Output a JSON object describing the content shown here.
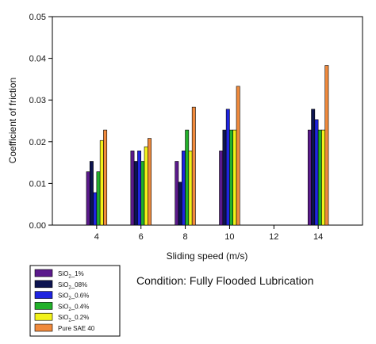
{
  "chart_data": {
    "type": "bar",
    "xlabel": "Sliding speed (m/s)",
    "ylabel": "Coefficient of friction",
    "annotation": "Condition: Fully Flooded Lubrication",
    "x_ticks": [
      4,
      6,
      8,
      10,
      12,
      14
    ],
    "xlim": [
      2,
      16
    ],
    "ylim": [
      0,
      0.05
    ],
    "y_ticks": [
      "0.00",
      "0.01",
      "0.02",
      "0.03",
      "0.04",
      "0.05"
    ],
    "grid": false,
    "legend_position": "bottom-left",
    "categories": [
      4,
      6,
      8,
      10,
      14
    ],
    "series": [
      {
        "name": "SiO2_1%",
        "label_main": "SiO",
        "label_sub": "2",
        "label_rest": "_1%",
        "color": "#5b1a8c",
        "values": [
          0.0128,
          0.0178,
          0.0153,
          0.0178,
          0.0228
        ]
      },
      {
        "name": "SiO2_08%",
        "label_main": "SiO",
        "label_sub": "2",
        "label_rest": "_08%",
        "color": "#0d1450",
        "values": [
          0.0153,
          0.0153,
          0.0103,
          0.0228,
          0.0278
        ]
      },
      {
        "name": "SiO2_0.6%",
        "label_main": "SiO",
        "label_sub": "2",
        "label_rest": "_0.6%",
        "color": "#1f24e0",
        "values": [
          0.0078,
          0.0178,
          0.0178,
          0.0278,
          0.0253
        ]
      },
      {
        "name": "SiO2_0.4%",
        "label_main": "SiO",
        "label_sub": "2",
        "label_rest": "_0.4%",
        "color": "#22b02a",
        "values": [
          0.0128,
          0.0153,
          0.0228,
          0.0228,
          0.0228
        ]
      },
      {
        "name": "SiO2_0.2%",
        "label_main": "SiO",
        "label_sub": "2",
        "label_rest": "_0.2%",
        "color": "#f2f21a",
        "values": [
          0.0203,
          0.0188,
          0.0178,
          0.0228,
          0.0228
        ]
      },
      {
        "name": "Pure SAE 40",
        "label_main": "Pure SAE 40",
        "label_sub": "",
        "label_rest": "",
        "color": "#f08a3c",
        "values": [
          0.0228,
          0.0208,
          0.0283,
          0.0333,
          0.0383
        ]
      }
    ]
  }
}
